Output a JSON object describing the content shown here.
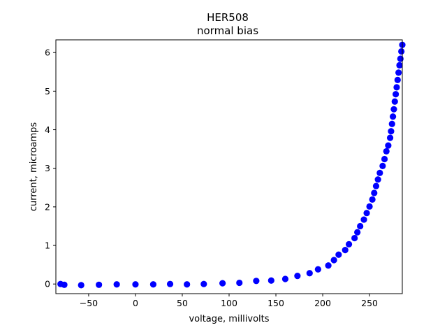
{
  "chart_data": {
    "type": "scatter",
    "title": "HER508",
    "subtitle": "normal bias",
    "xlabel": "voltage, millivolts",
    "ylabel": "current, microamps",
    "xlim": [
      -85,
      285
    ],
    "ylim": [
      -0.25,
      6.33
    ],
    "xticks": [
      -50,
      0,
      50,
      100,
      150,
      200,
      250
    ],
    "yticks": [
      0,
      1,
      2,
      3,
      4,
      5,
      6
    ],
    "xtick_labels": [
      "−50",
      "0",
      "50",
      "100",
      "150",
      "200",
      "250"
    ],
    "ytick_labels": [
      "0",
      "1",
      "2",
      "3",
      "4",
      "5",
      "6"
    ],
    "grid": false,
    "marker_color": "#0000ff",
    "series": [
      {
        "x": [
          -80,
          -76,
          -58,
          -39,
          -20,
          0,
          19,
          37,
          55,
          73,
          93,
          111,
          129,
          145,
          160,
          173,
          186,
          195,
          206,
          212,
          217,
          224,
          228,
          234,
          237,
          240,
          244,
          247,
          250,
          253,
          255,
          257,
          259,
          261,
          264,
          266,
          268,
          270,
          272,
          273,
          274,
          275,
          276,
          277,
          278,
          279,
          280,
          281,
          282,
          283,
          284
        ],
        "y": [
          0.0,
          -0.02,
          -0.03,
          -0.02,
          -0.01,
          -0.01,
          -0.01,
          0.0,
          -0.01,
          0.0,
          0.02,
          0.03,
          0.08,
          0.09,
          0.13,
          0.21,
          0.28,
          0.38,
          0.48,
          0.62,
          0.76,
          0.88,
          1.03,
          1.19,
          1.34,
          1.5,
          1.67,
          1.84,
          2.01,
          2.19,
          2.36,
          2.54,
          2.71,
          2.88,
          3.06,
          3.24,
          3.44,
          3.59,
          3.79,
          3.96,
          4.15,
          4.34,
          4.53,
          4.73,
          4.92,
          5.1,
          5.29,
          5.48,
          5.67,
          5.84,
          6.03
        ]
      },
      {
        "x": [
          285
        ],
        "y": [
          6.2
        ]
      }
    ]
  }
}
